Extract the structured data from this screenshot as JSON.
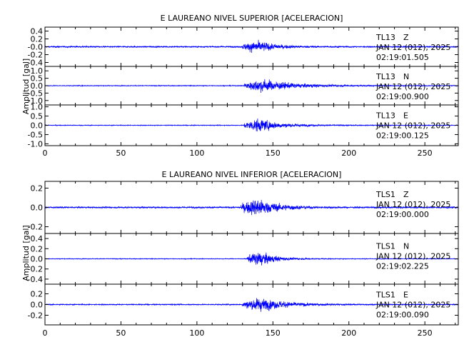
{
  "chart_data": [
    {
      "type": "line",
      "title": "E LAUREANO NIVEL SUPERIOR [ACELERACION]",
      "ylabel": "Amplitud [gal]",
      "xlim": [
        0,
        272
      ],
      "xticks": [
        "0",
        "50",
        "100",
        "150",
        "200",
        "250"
      ],
      "color": "#0000ff",
      "panels": [
        {
          "id": "sup-z",
          "ylim": [
            -0.5,
            0.5
          ],
          "yticks": [
            {
              "v": 0.4,
              "label": "0.4"
            },
            {
              "v": 0.2,
              "label": "0.2"
            },
            {
              "v": 0.0,
              "label": "-0.0"
            },
            {
              "v": -0.2,
              "label": "-0.2"
            },
            {
              "v": -0.4,
              "label": "-0.4"
            }
          ],
          "station": "TL13",
          "component": "Z",
          "date": "JAN 12 (012), 2025",
          "time": "02:19:01.505",
          "noise": 0.025,
          "onset": 130,
          "peak_t": 140,
          "peak": 0.43,
          "decay": 12
        },
        {
          "id": "sup-n",
          "ylim": [
            -1.3,
            1.3
          ],
          "yticks": [
            {
              "v": 1.0,
              "label": "1.0"
            },
            {
              "v": 0.5,
              "label": "0.5"
            },
            {
              "v": 0.0,
              "label": "0.0"
            },
            {
              "v": -0.5,
              "label": "-0.5"
            },
            {
              "v": -1.0,
              "label": "-1.0"
            }
          ],
          "station": "TL13",
          "component": "N",
          "date": "JAN 12 (012), 2025",
          "time": "02:19:00.900",
          "noise": 0.04,
          "onset": 131,
          "peak_t": 142,
          "peak": 1.25,
          "decay": 22
        },
        {
          "id": "sup-e",
          "ylim": [
            -1.1,
            1.1
          ],
          "yticks": [
            {
              "v": 1.0,
              "label": "1.0"
            },
            {
              "v": 0.5,
              "label": "0.5"
            },
            {
              "v": 0.0,
              "label": "0.0"
            },
            {
              "v": -0.5,
              "label": "-0.5"
            },
            {
              "v": -1.0,
              "label": "-1.0"
            }
          ],
          "station": "TL13",
          "component": "E",
          "date": "JAN 12 (012), 2025",
          "time": "02:19:00.125",
          "noise": 0.03,
          "onset": 131,
          "peak_t": 140,
          "peak": 1.05,
          "decay": 15
        }
      ]
    },
    {
      "type": "line",
      "title": "E LAUREANO NIVEL INFERIOR [ACELERACION]",
      "ylabel": "Amplitud [gal]",
      "xlim": [
        0,
        272
      ],
      "xticks": [
        "0",
        "50",
        "100",
        "150",
        "200",
        "250"
      ],
      "color": "#0000ff",
      "panels": [
        {
          "id": "inf-z",
          "ylim": [
            -0.27,
            0.27
          ],
          "yticks": [
            {
              "v": 0.2,
              "label": "0.2"
            },
            {
              "v": 0.0,
              "label": "0.0"
            },
            {
              "v": -0.2,
              "label": "-0.2"
            }
          ],
          "station": "TLS1",
          "component": "Z",
          "date": "JAN 12 (012), 2025",
          "time": "02:19:00.000",
          "noise": 0.012,
          "onset": 129,
          "peak_t": 140,
          "peak": 0.26,
          "decay": 14
        },
        {
          "id": "inf-n",
          "ylim": [
            -0.5,
            0.5
          ],
          "yticks": [
            {
              "v": 0.4,
              "label": "0.4"
            },
            {
              "v": 0.2,
              "label": "0.2"
            },
            {
              "v": 0.0,
              "label": "0.0"
            },
            {
              "v": -0.2,
              "label": "-0.2"
            },
            {
              "v": -0.4,
              "label": "-0.4"
            }
          ],
          "station": "TLS1",
          "component": "N",
          "date": "JAN 12 (012), 2025",
          "time": "02:19:02.225",
          "noise": 0.01,
          "onset": 133,
          "peak_t": 141,
          "peak": 0.46,
          "decay": 10
        },
        {
          "id": "inf-e",
          "ylim": [
            -0.38,
            0.38
          ],
          "yticks": [
            {
              "v": 0.2,
              "label": "0.2"
            },
            {
              "v": 0.0,
              "label": "0.0"
            },
            {
              "v": -0.2,
              "label": "-0.2"
            }
          ],
          "station": "TLS1",
          "component": "E",
          "date": "JAN 12 (012), 2025",
          "time": "02:19:00.090",
          "noise": 0.015,
          "onset": 130,
          "peak_t": 141,
          "peak": 0.36,
          "decay": 18
        }
      ]
    }
  ]
}
